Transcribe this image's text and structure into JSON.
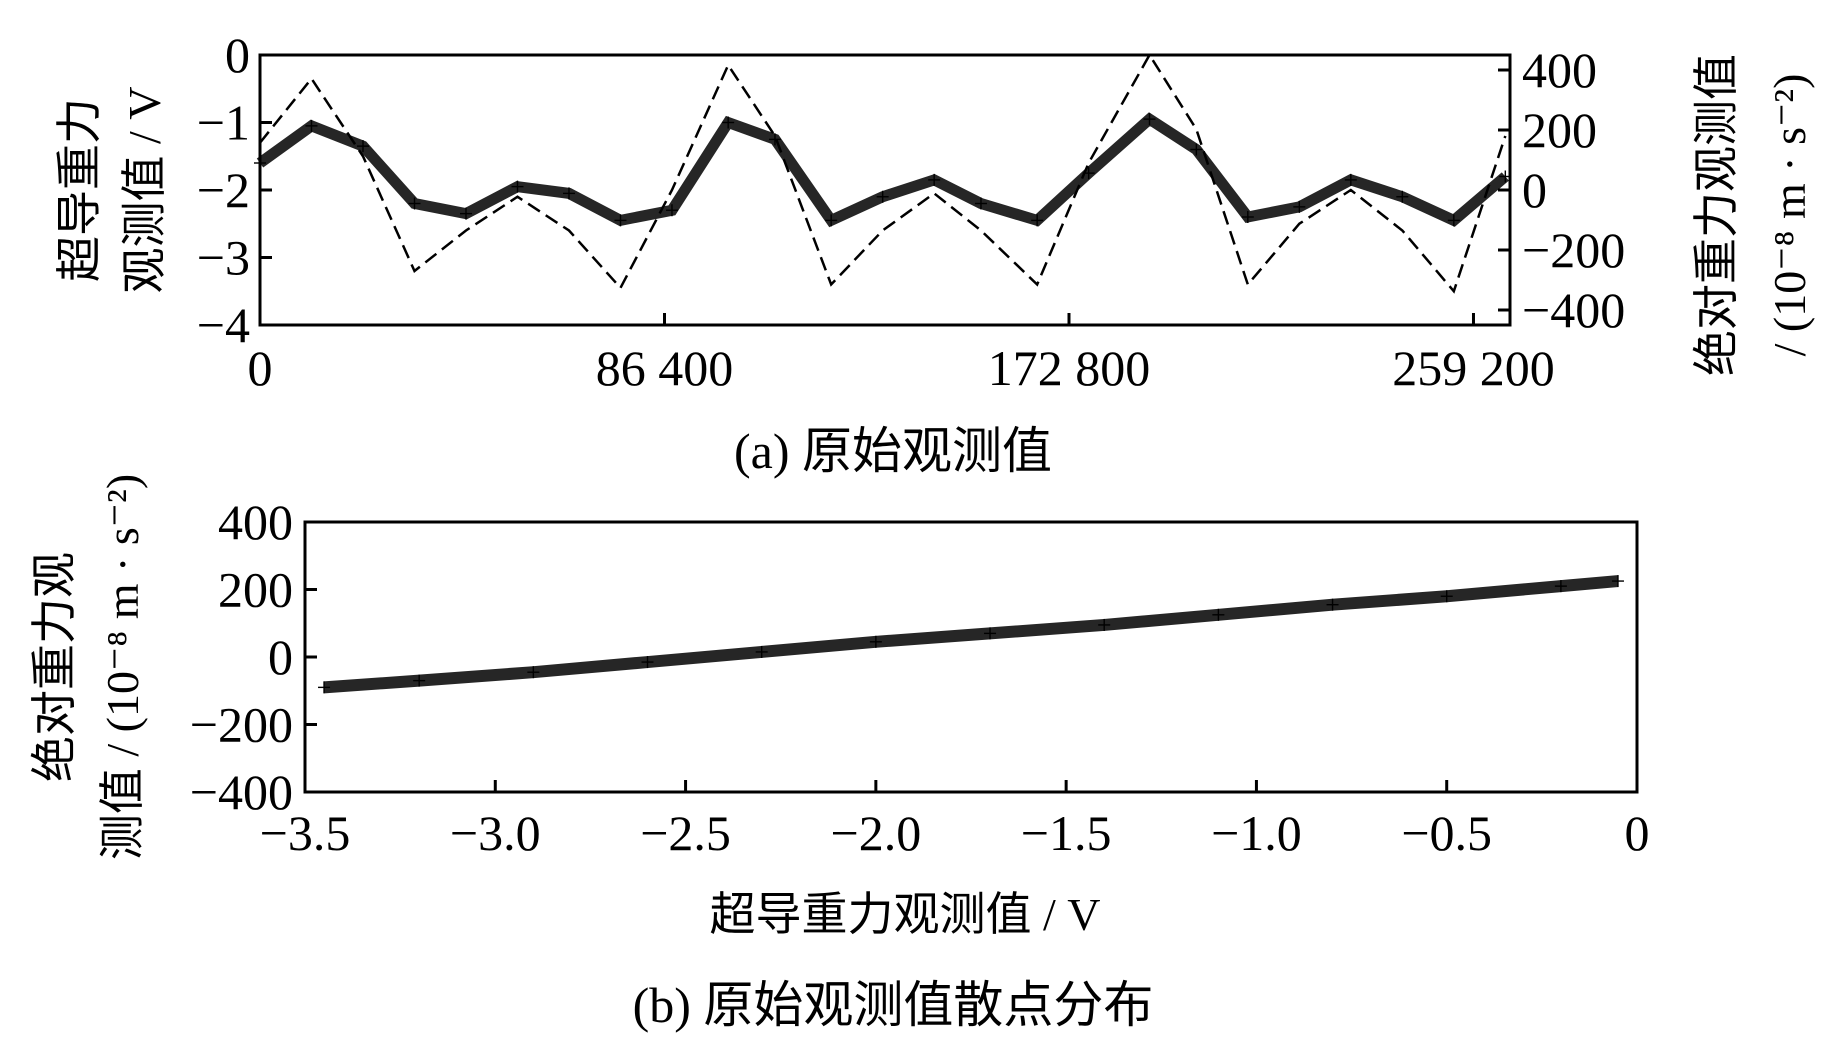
{
  "chart_data": [
    {
      "type": "line",
      "caption": "(a) 原始观测值",
      "ylabel_left_line1": "超导重力",
      "ylabel_left_line2": "观测值 / V",
      "ylabel_right_line1": "绝对重力观测值",
      "ylabel_right_line2": "/ (10⁻⁸ m · s⁻²)",
      "xlim": [
        0,
        267000
      ],
      "x_ticks": [
        0,
        86400,
        172800,
        259200
      ],
      "x_tick_labels": [
        "0",
        "86 400",
        "172 800",
        "259 200"
      ],
      "ylim_left": [
        -4,
        0
      ],
      "y_left_ticks": [
        0,
        -1,
        -2,
        -3,
        -4
      ],
      "y_left_tick_labels": [
        "0",
        "−1",
        "−2",
        "−3",
        "−4"
      ],
      "ylim_right": [
        -450,
        450
      ],
      "y_right_ticks": [
        400,
        200,
        0,
        -200,
        -400
      ],
      "y_right_tick_labels": [
        "400",
        "200",
        "0",
        "−200",
        "−400"
      ],
      "series": [
        {
          "marker": "+",
          "axis": "left",
          "x": [
            0,
            11000,
            22000,
            33000,
            44000,
            55000,
            66000,
            77000,
            88000,
            100000,
            110000,
            122000,
            133000,
            144000,
            154000,
            166000,
            177000,
            190000,
            200000,
            211000,
            222000,
            233000,
            244000,
            255000,
            266000
          ],
          "values": [
            -1.6,
            -1.05,
            -1.35,
            -2.2,
            -2.35,
            -1.95,
            -2.05,
            -2.45,
            -2.3,
            -1.0,
            -1.25,
            -2.45,
            -2.1,
            -1.85,
            -2.2,
            -2.45,
            -1.75,
            -0.95,
            -1.4,
            -2.4,
            -2.25,
            -1.85,
            -2.1,
            -2.45,
            -1.8
          ]
        },
        {
          "style": "dashed",
          "axis": "left",
          "x": [
            0,
            11000,
            22000,
            33000,
            44000,
            55000,
            66000,
            77000,
            88000,
            100000,
            110000,
            122000,
            133000,
            144000,
            154000,
            166000,
            177000,
            190000,
            200000,
            211000,
            222000,
            233000,
            244000,
            255000,
            266000
          ],
          "values": [
            -1.3,
            -0.35,
            -1.5,
            -3.2,
            -2.6,
            -2.1,
            -2.6,
            -3.45,
            -2.0,
            -0.15,
            -1.2,
            -3.4,
            -2.6,
            -2.05,
            -2.6,
            -3.4,
            -1.6,
            0.0,
            -1.1,
            -3.4,
            -2.5,
            -2.0,
            -2.6,
            -3.5,
            -1.2
          ]
        }
      ]
    },
    {
      "type": "scatter",
      "caption": "(b) 原始观测值散点分布",
      "xlabel": "超导重力观测值 / V",
      "ylabel_line1": "绝对重力观",
      "ylabel_line2": "测值 / (10⁻⁸ m · s⁻²)",
      "xlim": [
        -3.5,
        0
      ],
      "x_ticks": [
        -3.5,
        -3.0,
        -2.5,
        -2.0,
        -1.5,
        -1.0,
        -0.5,
        0
      ],
      "x_tick_labels": [
        "−3.5",
        "−3.0",
        "−2.5",
        "−2.0",
        "−1.5",
        "−1.0",
        "−0.5",
        "0"
      ],
      "ylim": [
        -400,
        400
      ],
      "y_ticks": [
        400,
        200,
        0,
        -200,
        -400
      ],
      "y_tick_labels": [
        "400",
        "200",
        "0",
        "−200",
        "−400"
      ],
      "series": [
        {
          "marker": "+",
          "x": [
            -3.45,
            -3.2,
            -2.9,
            -2.6,
            -2.3,
            -2.0,
            -1.7,
            -1.4,
            -1.1,
            -0.8,
            -0.5,
            -0.2,
            -0.05
          ],
          "values": [
            -90,
            -70,
            -45,
            -15,
            15,
            45,
            70,
            95,
            125,
            155,
            180,
            210,
            225
          ]
        }
      ]
    }
  ]
}
